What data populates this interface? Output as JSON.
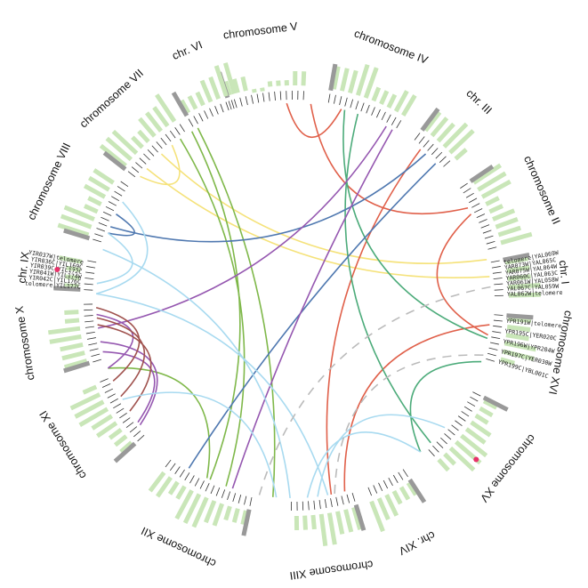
{
  "chromosomes": [
    {
      "label": "chromosome V"
    },
    {
      "label": "chromosome IV"
    },
    {
      "label": "chr. III"
    },
    {
      "label": "chromosome II"
    },
    {
      "label": "chr. I",
      "genes": [
        "telomere|YAL069W",
        "YAR073W|YAL065C",
        "YAR075W|YAL064W",
        "YAR060C|YAL063C",
        "YAR061W|YAL058W",
        "YAL067C|YAL059W",
        "YAL062W|telomere"
      ]
    },
    {
      "label": "chromosome XVI",
      "genes": [
        "YPR191W|telomere",
        "YPR195C|YER020C",
        "YPR196W|YPR204W",
        "YPR197C|YER030W",
        "YPR199C|YBL001C"
      ]
    },
    {
      "label": "chromosome XV"
    },
    {
      "label": "chr. XIV"
    },
    {
      "label": "chromosome XIII"
    },
    {
      "label": "chromosome XII"
    },
    {
      "label": "chromosome XI"
    },
    {
      "label": "chromosome X"
    },
    {
      "label": "chr. IX",
      "genes": [
        "telomere|YIL177C",
        "YIR042C|YIL176C",
        "YIR041W|YIL174W",
        "YIR039C|YIL172C",
        "YIR036C|YIL169C",
        "YIR037W|telomere"
      ]
    },
    {
      "label": "chromosome VIII"
    },
    {
      "label": "chromosome VII"
    },
    {
      "label": "chr. VI"
    }
  ]
}
